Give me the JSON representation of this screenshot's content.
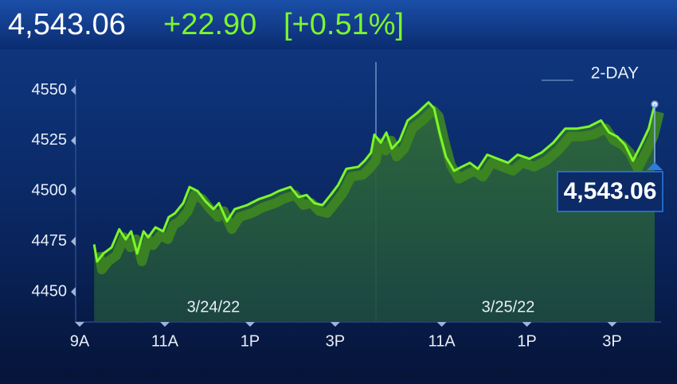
{
  "chart_data": {
    "type": "line",
    "title": "4,543.06",
    "change": "+22.90",
    "change_percent": "[+0.51%]",
    "range_label": "2-DAY",
    "color": "#7cf62c",
    "x": [
      0.34,
      0.41,
      0.56,
      0.75,
      0.93,
      1.08,
      1.21,
      1.35,
      1.5,
      1.61,
      1.78,
      1.96,
      2.09,
      2.24,
      2.43,
      2.58,
      2.77,
      2.95,
      3.14,
      3.27,
      3.46,
      3.64,
      3.93,
      4.21,
      4.49,
      4.67,
      4.95,
      5.14,
      5.33,
      5.51,
      5.7,
      5.89,
      6.07,
      6.26,
      6.54,
      6.69,
      6.84,
      6.92,
      7.07,
      7.2,
      7.33,
      7.51,
      7.7,
      7.94,
      8.19,
      8.32,
      8.45,
      8.6,
      8.79,
      8.97,
      9.16,
      9.35,
      9.57,
      9.81,
      10.06,
      10.28,
      10.56,
      10.84,
      11.12,
      11.4,
      11.68,
      11.96,
      12.24,
      12.43,
      12.62,
      12.8,
      12.99,
      13.18,
      13.36,
      13.5
    ],
    "values": [
      4473.5,
      4465,
      4469,
      4472,
      4481,
      4476,
      4480,
      4469,
      4480,
      4477,
      4482,
      4480,
      4487,
      4489,
      4494,
      4502,
      4500,
      4495,
      4491,
      4494,
      4485,
      4491,
      4493,
      4496,
      4498,
      4500,
      4502,
      4497,
      4498,
      4494,
      4493,
      4498,
      4503,
      4511,
      4512,
      4515,
      4519,
      4528,
      4524,
      4529,
      4521,
      4525,
      4535,
      4539,
      4544,
      4541,
      4529,
      4517,
      4510,
      4512,
      4514,
      4511,
      4518,
      4516,
      4514,
      4518,
      4516,
      4519,
      4524,
      4531,
      4531,
      4532,
      4535,
      4529,
      4527,
      4523,
      4515,
      4523,
      4531,
      4543.06
    ],
    "value_labels": [
      null,
      null,
      null,
      null,
      null,
      null,
      null,
      null,
      null,
      null,
      null,
      null,
      null,
      null,
      null,
      null,
      null,
      null,
      null,
      null,
      null,
      null,
      null,
      null,
      null,
      null,
      null,
      null,
      null,
      null,
      null,
      null,
      null,
      null,
      null,
      null,
      null,
      null,
      null,
      null,
      null,
      null,
      null,
      null,
      null,
      null,
      null,
      null,
      null,
      null,
      null,
      null,
      null,
      null,
      null,
      null,
      null,
      null,
      null,
      null,
      null,
      null,
      null,
      null,
      null,
      null,
      null,
      null,
      null,
      "4,543.06"
    ],
    "xlim": [
      0,
      13.5
    ],
    "xticks": [
      {
        "value": 0,
        "label": "9A"
      },
      {
        "value": 2,
        "label": "11A"
      },
      {
        "value": 4,
        "label": "1P"
      },
      {
        "value": 6,
        "label": "3P"
      },
      {
        "value": 8.5,
        "label": "11A"
      },
      {
        "value": 10.5,
        "label": "1P"
      },
      {
        "value": 12.5,
        "label": "3P"
      }
    ],
    "ylim": [
      4435,
      4565
    ],
    "yticks": [
      4450,
      4475,
      4500,
      4525,
      4550
    ],
    "annotations": [
      {
        "text": "3/24/22",
        "x": 3.14
      },
      {
        "text": "3/25/22",
        "x": 10.06
      }
    ]
  }
}
